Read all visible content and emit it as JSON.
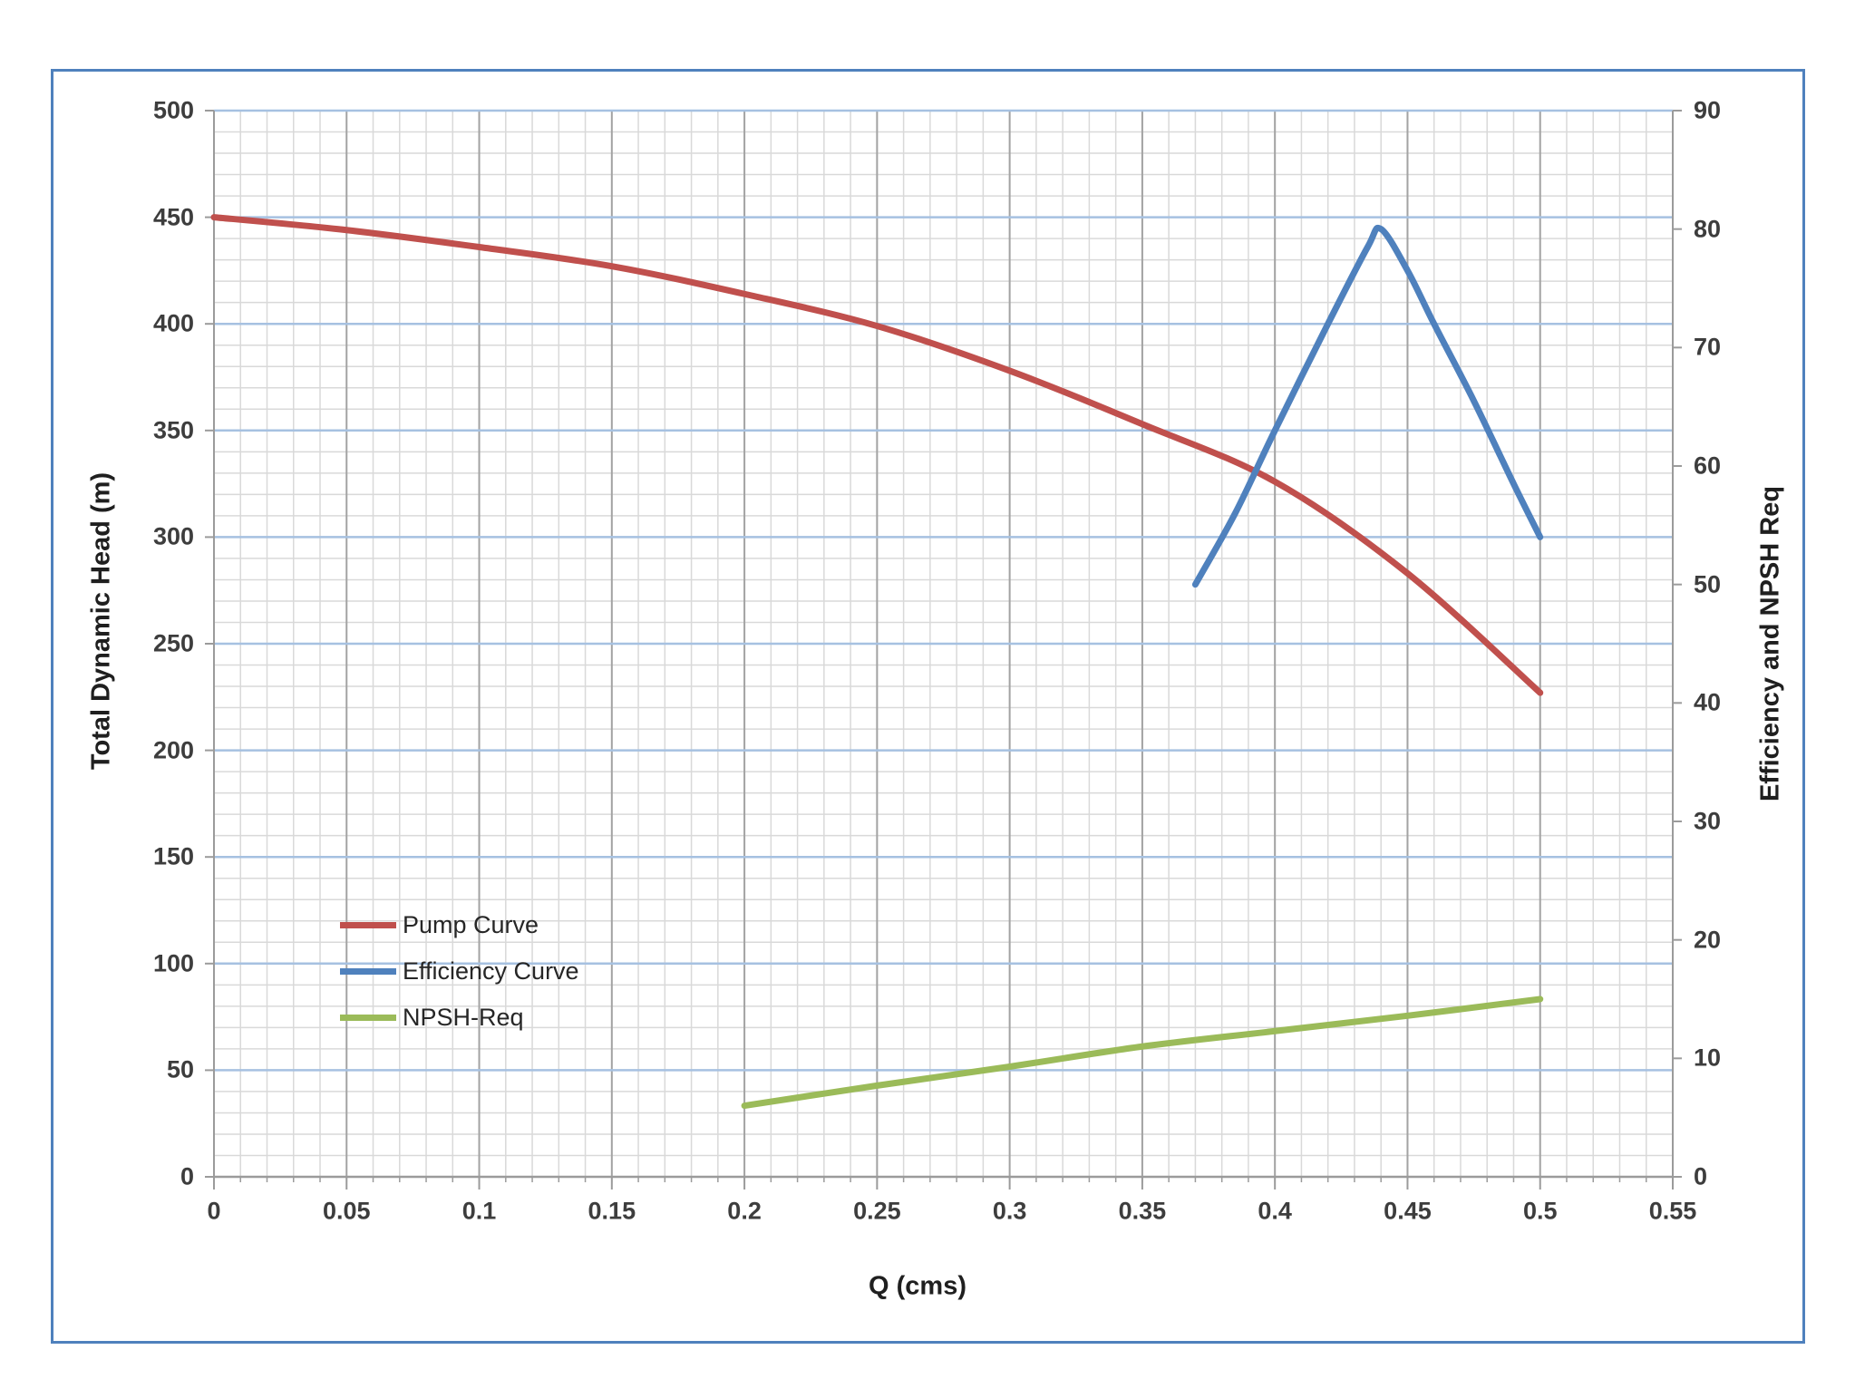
{
  "chart_data": {
    "type": "line",
    "title": "",
    "xlabel": "Q (cms)",
    "ylabel_left": "Total Dynamic Head (m)",
    "ylabel_right": "Efficiency and NPSH Req",
    "x_axis": {
      "min": 0,
      "max": 0.55,
      "minor_step": 0.01,
      "major_step": 0.05,
      "ticks": [
        "0",
        "0.05",
        "0.1",
        "0.15",
        "0.2",
        "0.25",
        "0.3",
        "0.35",
        "0.4",
        "0.45",
        "0.5",
        "0.55"
      ]
    },
    "y_left": {
      "min": 0,
      "max": 500,
      "minor_step": 10,
      "major_step": 50,
      "ticks": [
        "0",
        "50",
        "100",
        "150",
        "200",
        "250",
        "300",
        "350",
        "400",
        "450",
        "500"
      ]
    },
    "y_right": {
      "min": 0,
      "max": 90,
      "major_step": 10,
      "ticks": [
        "0",
        "10",
        "20",
        "30",
        "40",
        "50",
        "60",
        "70",
        "80",
        "90"
      ]
    },
    "grid": {
      "minor": "on",
      "major": "on"
    },
    "legend_position": "inside-middle-left",
    "series": [
      {
        "name": "Pump Curve",
        "axis": "left",
        "color": "#C0504D",
        "points": [
          [
            0,
            450
          ],
          [
            0.05,
            444
          ],
          [
            0.1,
            436
          ],
          [
            0.15,
            427
          ],
          [
            0.2,
            414
          ],
          [
            0.25,
            399
          ],
          [
            0.3,
            378
          ],
          [
            0.35,
            353
          ],
          [
            0.4,
            326
          ],
          [
            0.45,
            283
          ],
          [
            0.5,
            227
          ]
        ]
      },
      {
        "name": "Efficiency Curve",
        "axis": "right",
        "color": "#4F81BD",
        "points": [
          [
            0.37,
            50
          ],
          [
            0.385,
            56
          ],
          [
            0.4,
            63
          ],
          [
            0.42,
            72
          ],
          [
            0.435,
            78.5
          ],
          [
            0.44,
            80
          ],
          [
            0.45,
            76.5
          ],
          [
            0.46,
            72
          ],
          [
            0.475,
            65.5
          ],
          [
            0.49,
            58.5
          ],
          [
            0.5,
            54
          ]
        ]
      },
      {
        "name": "NPSH-Req",
        "axis": "right",
        "color": "#9BBB59",
        "points": [
          [
            0.2,
            6
          ],
          [
            0.25,
            7.7
          ],
          [
            0.3,
            9.3
          ],
          [
            0.35,
            11
          ],
          [
            0.4,
            12.3
          ],
          [
            0.45,
            13.6
          ],
          [
            0.5,
            15
          ]
        ]
      }
    ],
    "colors": {
      "frame_border": "#4F81BD",
      "major_h_gridline": "#A6C1E1",
      "major_v_gridline": "#A3A3A3",
      "minor_gridline": "#D9D9D9",
      "axis_line": "#9B9B9B",
      "tick_text": "#3D3D3D"
    }
  }
}
